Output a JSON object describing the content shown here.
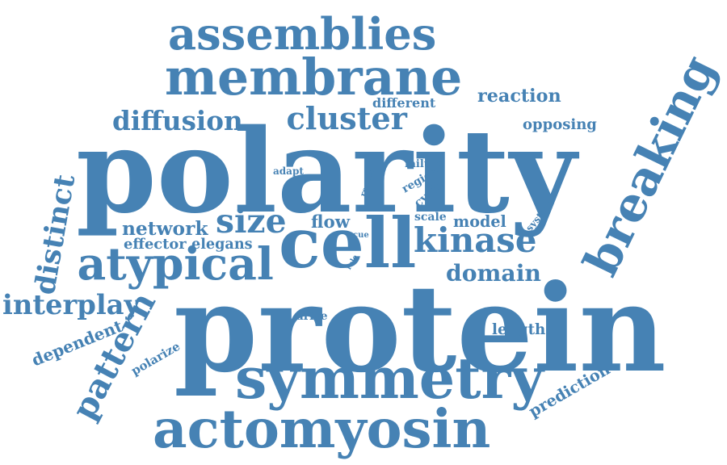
{
  "color": "#4682b4",
  "background": "#ffffff",
  "words": {
    "protein": "protein",
    "polarity": "polarity",
    "cell": "cell",
    "breaking": "breaking",
    "membrane": "membrane",
    "symmetry": "symmetry",
    "actomyosin": "actomyosin",
    "assemblies": "assemblies",
    "atypical": "atypical",
    "kinase": "kinase",
    "size": "size",
    "cluster": "cluster",
    "diffusion": "diffusion",
    "distinct": "distinct",
    "interplay": "interplay",
    "pattern": "pattern",
    "domain": "domain",
    "reaction": "reaction",
    "network": "network",
    "model": "model",
    "flow": "flow",
    "dependent": "dependent",
    "length": "length",
    "opposing": "opposing",
    "prediction": "prediction",
    "different": "different",
    "effector": "effector",
    "elegans": "elegans",
    "failure": "failure",
    "region": "region",
    "cycle": "cycle",
    "scale": "scale",
    "system": "system",
    "drive": "drive",
    "polarize": "polarize",
    "adapt": "adapt",
    "result": "result",
    "cue": "cue",
    "role": "role"
  }
}
